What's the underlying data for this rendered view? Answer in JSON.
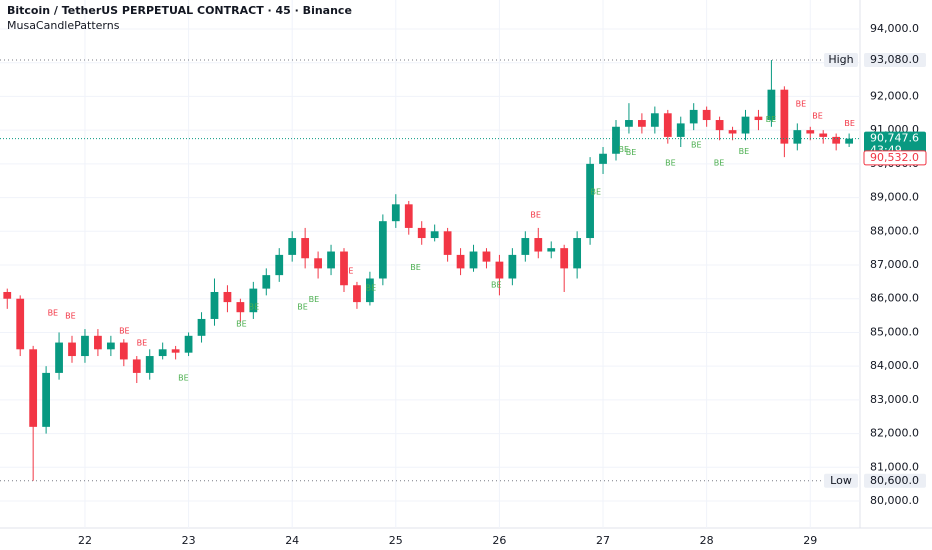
{
  "chart_data": {
    "type": "candlestick",
    "title": "Bitcoin / TetherUS PERPETUAL CONTRACT · 45 · Binance",
    "subtitle": "MusaCandlePatterns",
    "up_color": "#089981",
    "down_color": "#f23645",
    "xlim": [
      21.18,
      29.48
    ],
    "xticks": [
      22,
      23,
      24,
      25,
      26,
      27,
      28,
      29
    ],
    "ylim": [
      79200,
      94860
    ],
    "yticks": [
      {
        "value": 80000,
        "label": "80,000.0"
      },
      {
        "value": 81000,
        "label": "81,000.0"
      },
      {
        "value": 82000,
        "label": "82,000.0"
      },
      {
        "value": 83000,
        "label": "83,000.0"
      },
      {
        "value": 84000,
        "label": "84,000.0"
      },
      {
        "value": 85000,
        "label": "85,000.0"
      },
      {
        "value": 86000,
        "label": "86,000.0"
      },
      {
        "value": 87000,
        "label": "87,000.0"
      },
      {
        "value": 88000,
        "label": "88,000.0"
      },
      {
        "value": 89000,
        "label": "89,000.0"
      },
      {
        "value": 90000,
        "label": "90,000.0"
      },
      {
        "value": 91000,
        "label": "91,000.0"
      },
      {
        "value": 92000,
        "label": "92,000.0"
      },
      {
        "value": 93000,
        "label": "93,000.0"
      },
      {
        "value": 94000,
        "label": "94,000.0"
      }
    ],
    "x": [
      21.25,
      21.375,
      21.5,
      21.625,
      21.75,
      21.875,
      22,
      22.125,
      22.25,
      22.375,
      22.5,
      22.625,
      22.75,
      22.875,
      23,
      23.125,
      23.25,
      23.375,
      23.5,
      23.625,
      23.75,
      23.875,
      24,
      24.125,
      24.25,
      24.375,
      24.5,
      24.625,
      24.75,
      24.875,
      25,
      25.125,
      25.25,
      25.375,
      25.5,
      25.625,
      25.75,
      25.875,
      26,
      26.125,
      26.25,
      26.375,
      26.5,
      26.625,
      26.75,
      26.875,
      27,
      27.125,
      27.25,
      27.375,
      27.5,
      27.625,
      27.75,
      27.875,
      28,
      28.125,
      28.25,
      28.375,
      28.5,
      28.625,
      28.75,
      28.875,
      29,
      29.125,
      29.25,
      29.375
    ],
    "open": [
      86200,
      86000,
      84500,
      82200,
      83800,
      84700,
      84300,
      84900,
      84500,
      84700,
      84200,
      83800,
      84300,
      84500,
      84400,
      84900,
      85400,
      86200,
      85900,
      85600,
      86300,
      86700,
      87300,
      87800,
      87200,
      86900,
      87400,
      86400,
      85900,
      86600,
      88300,
      88800,
      88100,
      87800,
      88000,
      87300,
      86900,
      87400,
      87100,
      86600,
      87300,
      87800,
      87400,
      87500,
      86900,
      87800,
      90000,
      90300,
      91100,
      91300,
      91100,
      91500,
      90800,
      91200,
      91600,
      91300,
      91000,
      90900,
      91400,
      91300,
      92200,
      90600,
      91000,
      90900,
      90800,
      90600
    ],
    "high": [
      86300,
      86100,
      84600,
      84000,
      85000,
      84900,
      85100,
      85100,
      84900,
      84800,
      84300,
      84500,
      84700,
      84600,
      85000,
      85600,
      86600,
      86400,
      86000,
      86500,
      86900,
      87500,
      88000,
      88100,
      87400,
      87600,
      87500,
      86500,
      86800,
      88500,
      89100,
      88900,
      88300,
      88200,
      88100,
      87500,
      87600,
      87500,
      87300,
      87500,
      88000,
      88100,
      87700,
      87600,
      88000,
      90200,
      90500,
      91300,
      91800,
      91500,
      91700,
      91600,
      91400,
      91800,
      91700,
      91400,
      91100,
      91600,
      91600,
      93080,
      92300,
      91200,
      91100,
      91000,
      90900,
      90900
    ],
    "low": [
      85700,
      84300,
      80600,
      82000,
      83600,
      84100,
      84100,
      84300,
      84300,
      84000,
      83500,
      83600,
      84200,
      84200,
      84300,
      84700,
      85200,
      85600,
      85300,
      85400,
      86100,
      86500,
      87100,
      86900,
      86600,
      86700,
      86200,
      85700,
      85800,
      86400,
      88100,
      87900,
      87600,
      87700,
      87100,
      86700,
      86800,
      86900,
      86100,
      86400,
      87100,
      87200,
      87200,
      86200,
      86600,
      87600,
      89700,
      90100,
      90900,
      90900,
      90900,
      90600,
      90500,
      91000,
      91100,
      90700,
      90700,
      90700,
      91000,
      91100,
      90200,
      90400,
      90700,
      90600,
      90400,
      90500
    ],
    "close": [
      86000,
      84500,
      82200,
      83800,
      84700,
      84300,
      84900,
      84500,
      84700,
      84200,
      83800,
      84300,
      84500,
      84400,
      84900,
      85400,
      86200,
      85900,
      85600,
      86300,
      86700,
      87300,
      87800,
      87200,
      86900,
      87400,
      86400,
      85900,
      86600,
      88300,
      88800,
      88100,
      87800,
      88000,
      87300,
      86900,
      87400,
      87100,
      86600,
      87300,
      87800,
      87400,
      87500,
      86900,
      87800,
      90000,
      90300,
      91100,
      91300,
      91100,
      91500,
      90800,
      91200,
      91600,
      91300,
      91000,
      90900,
      91400,
      91300,
      92200,
      90600,
      91000,
      90900,
      90800,
      90600,
      90747.6
    ],
    "annotations": [
      {
        "text": "BE",
        "x": 21.69,
        "y": 85575,
        "color": "#f23645"
      },
      {
        "text": "BE",
        "x": 21.86,
        "y": 85490,
        "color": "#f23645"
      },
      {
        "text": "BE",
        "x": 22.38,
        "y": 85040,
        "color": "#f23645"
      },
      {
        "text": "BE",
        "x": 22.55,
        "y": 84690,
        "color": "#f23645"
      },
      {
        "text": "BE",
        "x": 24.54,
        "y": 86820,
        "color": "#f23645"
      },
      {
        "text": "BE",
        "x": 26.35,
        "y": 88480,
        "color": "#f23645"
      },
      {
        "text": "BE",
        "x": 28.91,
        "y": 91780,
        "color": "#f23645"
      },
      {
        "text": "BE",
        "x": 29.07,
        "y": 91420,
        "color": "#f23645"
      },
      {
        "text": "BE",
        "x": 29.38,
        "y": 91190,
        "color": "#f23645"
      },
      {
        "text": "BE",
        "x": 22.95,
        "y": 83650,
        "color": "#4caf50"
      },
      {
        "text": "BE",
        "x": 23.51,
        "y": 85250,
        "color": "#4caf50"
      },
      {
        "text": "BE",
        "x": 23.63,
        "y": 85760,
        "color": "#4caf50"
      },
      {
        "text": "BE",
        "x": 24.1,
        "y": 85760,
        "color": "#4caf50"
      },
      {
        "text": "BE",
        "x": 24.21,
        "y": 85970,
        "color": "#4caf50"
      },
      {
        "text": "BE",
        "x": 24.76,
        "y": 86320,
        "color": "#4caf50"
      },
      {
        "text": "BE",
        "x": 25.19,
        "y": 86920,
        "color": "#4caf50"
      },
      {
        "text": "BE",
        "x": 25.97,
        "y": 86410,
        "color": "#4caf50"
      },
      {
        "text": "BE",
        "x": 26.93,
        "y": 89170,
        "color": "#4caf50"
      },
      {
        "text": "BE",
        "x": 27.2,
        "y": 90420,
        "color": "#4caf50"
      },
      {
        "text": "BE",
        "x": 27.27,
        "y": 90330,
        "color": "#4caf50"
      },
      {
        "text": "BE",
        "x": 27.65,
        "y": 90030,
        "color": "#4caf50"
      },
      {
        "text": "BE",
        "x": 27.9,
        "y": 90560,
        "color": "#4caf50"
      },
      {
        "text": "BE",
        "x": 28.12,
        "y": 90030,
        "color": "#4caf50"
      },
      {
        "text": "BE",
        "x": 28.36,
        "y": 90360,
        "color": "#4caf50"
      },
      {
        "text": "BE",
        "x": 28.62,
        "y": 91310,
        "color": "#4caf50"
      }
    ],
    "high_line": {
      "label": "High",
      "value": 93080,
      "value_label": "93,080.0"
    },
    "low_line": {
      "label": "Low",
      "value": 80600,
      "value_label": "80,600.0"
    },
    "last_price": {
      "value": 90747.6,
      "value_label": "90,747.6",
      "countdown": "43:49",
      "color": "#089981"
    },
    "other_price": {
      "value": 90532,
      "value_label": "90,532.0",
      "color": "#f23645"
    }
  }
}
